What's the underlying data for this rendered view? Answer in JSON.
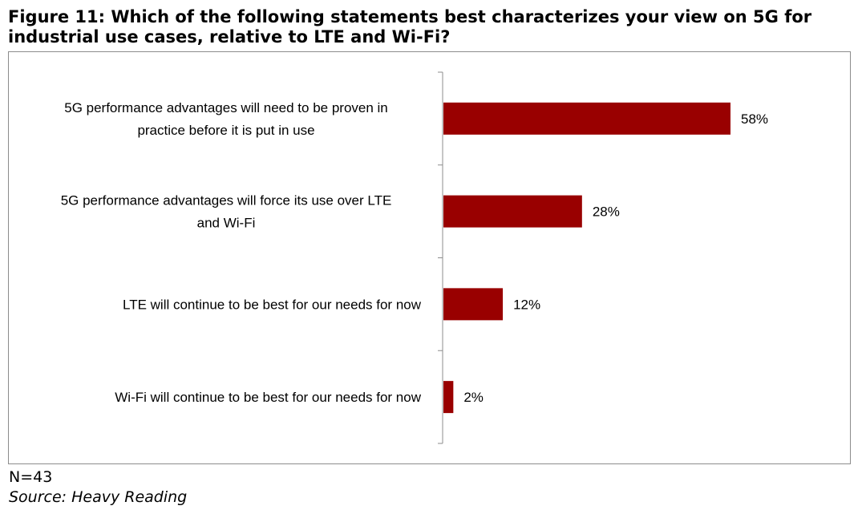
{
  "title": "Figure 11: Which of the following statements best characterizes your view on 5G for industrial use cases, relative to LTE and Wi-Fi?",
  "note": "N=43",
  "source": "Source: Heavy Reading",
  "colors": {
    "bar": "#990000",
    "axis": "#8c8c8c",
    "frame": "#8c8c8c"
  },
  "chart_data": {
    "type": "bar",
    "orientation": "horizontal",
    "categories": [
      [
        "5G performance advantages will need to be proven in",
        "practice before it is put in use"
      ],
      [
        "5G performance advantages will force its use over LTE",
        "and Wi-Fi"
      ],
      [
        "LTE will continue to be best for our needs for now"
      ],
      [
        "Wi-Fi will continue to be best for our needs for now"
      ]
    ],
    "values": [
      58,
      28,
      12,
      2
    ],
    "value_labels": [
      "58%",
      "28%",
      "12%",
      "2%"
    ],
    "unit": "%",
    "xlim": [
      0,
      60
    ],
    "grid": false,
    "legend": "none"
  }
}
